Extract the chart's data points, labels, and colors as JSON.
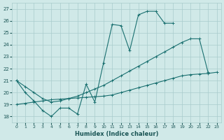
{
  "xlabel": "Humidex (Indice chaleur)",
  "xlim": [
    -0.5,
    23.5
  ],
  "ylim": [
    17.5,
    27.5
  ],
  "yticks": [
    18,
    19,
    20,
    21,
    22,
    23,
    24,
    25,
    26,
    27
  ],
  "xticks": [
    0,
    1,
    2,
    3,
    4,
    5,
    6,
    7,
    8,
    9,
    10,
    11,
    12,
    13,
    14,
    15,
    16,
    17,
    18,
    19,
    20,
    21,
    22,
    23
  ],
  "bg_color": "#d0e9e8",
  "grid_color": "#a8cccc",
  "line_color": "#1a7070",
  "line1_x": [
    0,
    1,
    2,
    3,
    4,
    5,
    6,
    7,
    8,
    9,
    10,
    11,
    12,
    13,
    14,
    15,
    16,
    17,
    18
  ],
  "line1_y": [
    21.0,
    20.0,
    19.3,
    18.5,
    18.0,
    18.7,
    18.7,
    18.2,
    20.7,
    19.2,
    22.5,
    25.7,
    25.6,
    23.5,
    26.5,
    26.8,
    26.8,
    25.8,
    25.8
  ],
  "line2_x": [
    0,
    1,
    2,
    3,
    4,
    5,
    6,
    7,
    8,
    9,
    10,
    11,
    12,
    13,
    14,
    15,
    16,
    17,
    18,
    19,
    20,
    21,
    22
  ],
  "line2_y": [
    21.0,
    20.5,
    20.0,
    19.5,
    19.2,
    19.3,
    19.5,
    19.7,
    20.0,
    20.3,
    20.6,
    21.0,
    21.4,
    21.8,
    22.2,
    22.6,
    23.0,
    23.4,
    23.8,
    24.2,
    24.5,
    24.5,
    21.7
  ],
  "line3_x": [
    0,
    1,
    2,
    3,
    4,
    5,
    6,
    7,
    8,
    9,
    10,
    11,
    12,
    13,
    14,
    15,
    16,
    17,
    18,
    19,
    20,
    21,
    22,
    23
  ],
  "line3_y": [
    19.0,
    19.1,
    19.2,
    19.3,
    19.4,
    19.45,
    19.5,
    19.55,
    19.6,
    19.65,
    19.7,
    19.8,
    20.0,
    20.2,
    20.4,
    20.6,
    20.8,
    21.0,
    21.2,
    21.4,
    21.5,
    21.55,
    21.6,
    21.7
  ]
}
